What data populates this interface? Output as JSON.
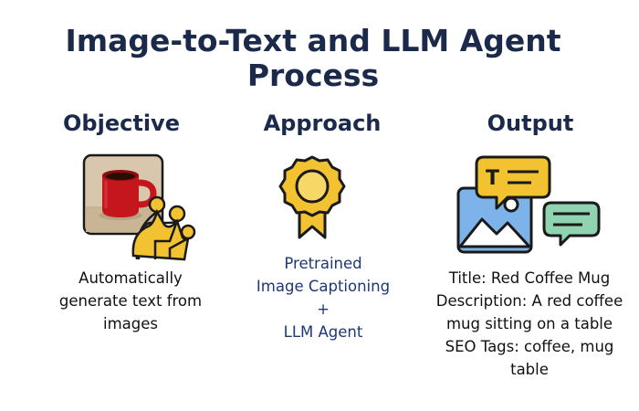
{
  "title": {
    "line1": "Image-to-Text and LLM Agent",
    "line2": "Process"
  },
  "columns": {
    "objective": {
      "heading": "Objective",
      "lines": [
        "Automatically",
        "generate text from",
        "images"
      ]
    },
    "approach": {
      "heading": "Approach",
      "lines": [
        "Pretrained",
        "Image Captioning",
        "+",
        "LLM Agent"
      ]
    },
    "output": {
      "heading": "Output",
      "lines": [
        "Title: Red Coffee Mug",
        "Description: A red coffee",
        "mug sitting on a table",
        "SEO Tags: coffee, mug",
        "table"
      ],
      "icon_letter": "T"
    }
  },
  "colors": {
    "heading": "#1b2a4a",
    "approach_text": "#1d3778",
    "mug_red": "#c4161c",
    "circuit_yellow": "#f2c230",
    "outline": "#1a1a1a",
    "photo_blue": "#7db3e8",
    "bubble_green": "#8fd3b0"
  },
  "icons": {
    "objective": "coffee-mug-circuit-icon",
    "approach": "award-ribbon-icon",
    "output": "image-chat-bubbles-icon"
  }
}
